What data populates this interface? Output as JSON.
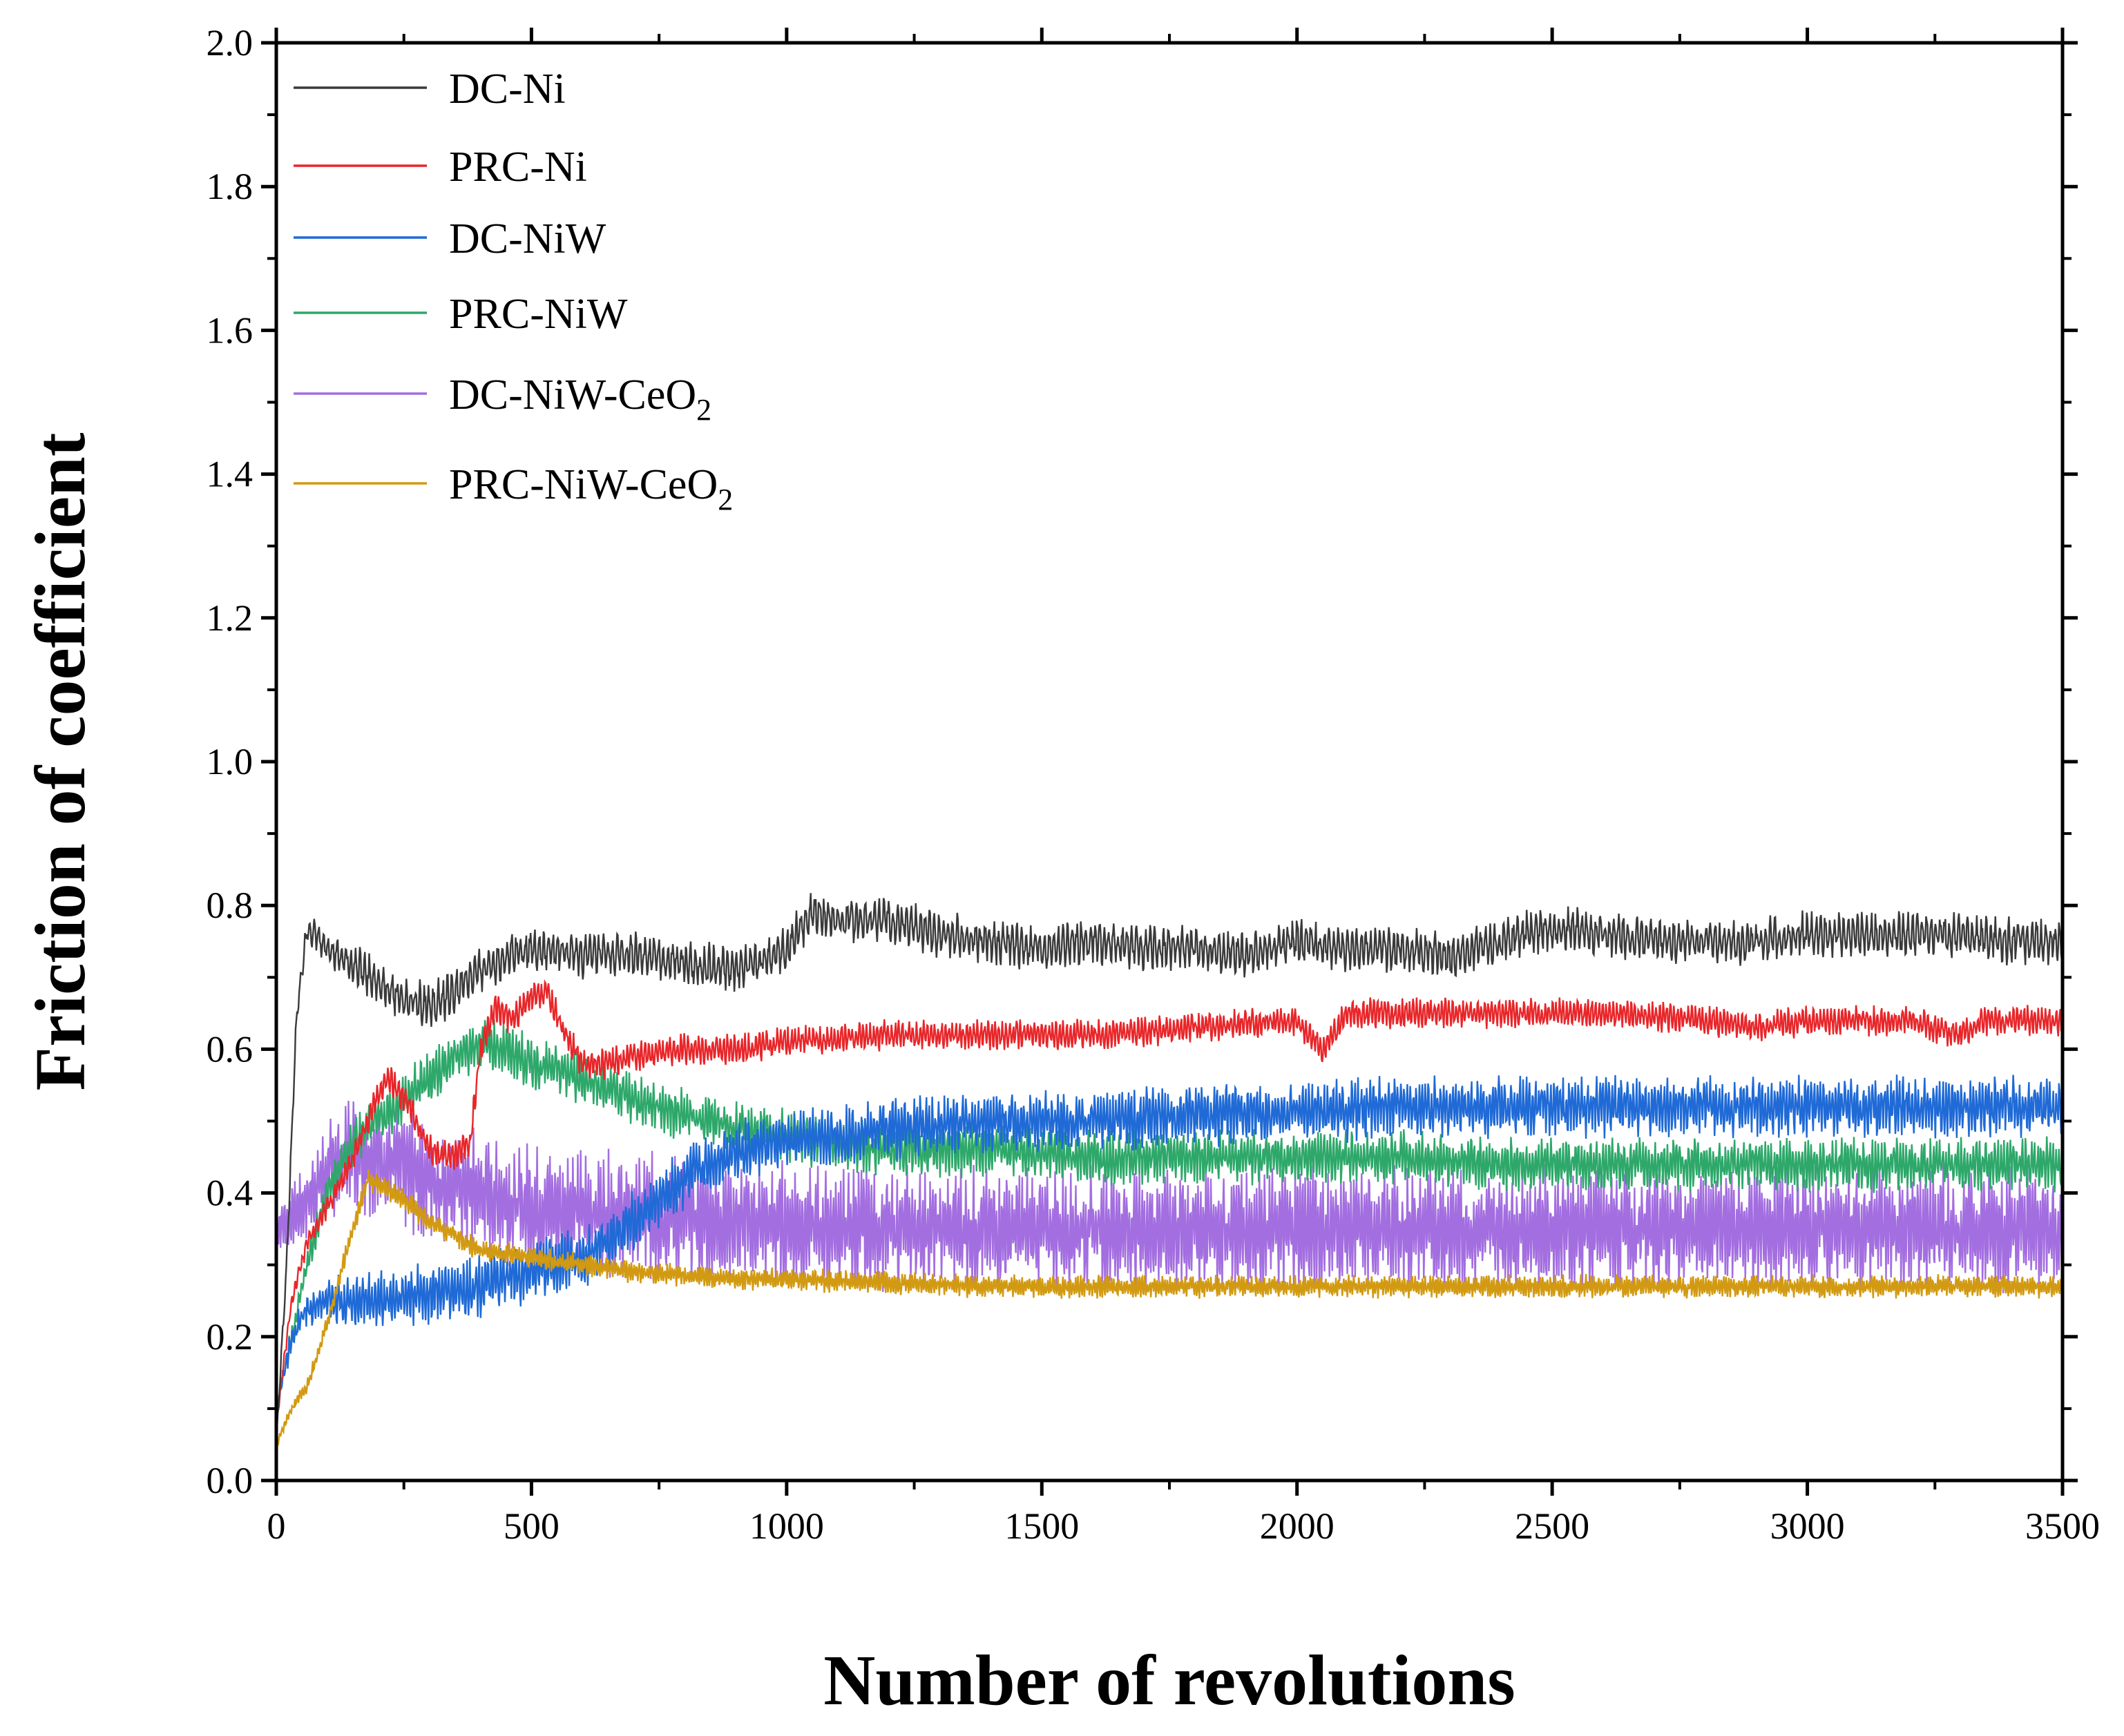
{
  "chart_data": {
    "type": "line",
    "title": "",
    "xlabel": "Number of revolutions",
    "ylabel": "Friction of coefficient",
    "xlim": [
      0,
      3500
    ],
    "ylim": [
      0.0,
      2.0
    ],
    "x_ticks": [
      "0",
      "500",
      "1000",
      "1500",
      "2000",
      "2500",
      "3000",
      "3500"
    ],
    "y_ticks": [
      "0.0",
      "0.2",
      "0.4",
      "0.6",
      "0.8",
      "1.0",
      "1.2",
      "1.4",
      "1.6",
      "1.8",
      "2.0"
    ],
    "grid": false,
    "legend_position": "top-left",
    "series": [
      {
        "name": "DC-Ni",
        "subscript": "",
        "color": "#3a3a3a",
        "noise": 0.03,
        "period": 9,
        "points": [
          [
            0,
            0.05
          ],
          [
            20,
            0.3
          ],
          [
            40,
            0.65
          ],
          [
            60,
            0.77
          ],
          [
            100,
            0.74
          ],
          [
            150,
            0.72
          ],
          [
            200,
            0.69
          ],
          [
            250,
            0.67
          ],
          [
            300,
            0.66
          ],
          [
            350,
            0.68
          ],
          [
            400,
            0.71
          ],
          [
            450,
            0.73
          ],
          [
            500,
            0.74
          ],
          [
            600,
            0.73
          ],
          [
            700,
            0.73
          ],
          [
            800,
            0.72
          ],
          [
            900,
            0.71
          ],
          [
            1000,
            0.74
          ],
          [
            1050,
            0.79
          ],
          [
            1100,
            0.78
          ],
          [
            1200,
            0.78
          ],
          [
            1300,
            0.76
          ],
          [
            1400,
            0.75
          ],
          [
            1500,
            0.74
          ],
          [
            1600,
            0.75
          ],
          [
            1700,
            0.74
          ],
          [
            1800,
            0.74
          ],
          [
            1900,
            0.73
          ],
          [
            2000,
            0.75
          ],
          [
            2100,
            0.74
          ],
          [
            2200,
            0.74
          ],
          [
            2300,
            0.73
          ],
          [
            2400,
            0.75
          ],
          [
            2500,
            0.77
          ],
          [
            2600,
            0.76
          ],
          [
            2700,
            0.75
          ],
          [
            2800,
            0.75
          ],
          [
            2900,
            0.75
          ],
          [
            3000,
            0.76
          ],
          [
            3100,
            0.76
          ],
          [
            3200,
            0.76
          ],
          [
            3300,
            0.76
          ],
          [
            3400,
            0.75
          ],
          [
            3500,
            0.75
          ]
        ]
      },
      {
        "name": "PRC-Ni",
        "subscript": "",
        "color": "#e8262a",
        "noise": 0.02,
        "period": 7,
        "points": [
          [
            0,
            0.08
          ],
          [
            30,
            0.25
          ],
          [
            60,
            0.33
          ],
          [
            100,
            0.38
          ],
          [
            150,
            0.45
          ],
          [
            200,
            0.54
          ],
          [
            220,
            0.56
          ],
          [
            260,
            0.52
          ],
          [
            300,
            0.46
          ],
          [
            350,
            0.45
          ],
          [
            380,
            0.47
          ],
          [
            400,
            0.6
          ],
          [
            430,
            0.66
          ],
          [
            460,
            0.64
          ],
          [
            500,
            0.67
          ],
          [
            530,
            0.68
          ],
          [
            560,
            0.63
          ],
          [
            600,
            0.58
          ],
          [
            650,
            0.58
          ],
          [
            700,
            0.59
          ],
          [
            800,
            0.6
          ],
          [
            900,
            0.6
          ],
          [
            1000,
            0.61
          ],
          [
            1200,
            0.62
          ],
          [
            1400,
            0.62
          ],
          [
            1600,
            0.62
          ],
          [
            1800,
            0.63
          ],
          [
            2000,
            0.64
          ],
          [
            2050,
            0.6
          ],
          [
            2100,
            0.65
          ],
          [
            2200,
            0.65
          ],
          [
            2400,
            0.65
          ],
          [
            2600,
            0.65
          ],
          [
            2800,
            0.64
          ],
          [
            2900,
            0.63
          ],
          [
            3000,
            0.64
          ],
          [
            3200,
            0.64
          ],
          [
            3300,
            0.62
          ],
          [
            3350,
            0.64
          ],
          [
            3500,
            0.64
          ]
        ]
      },
      {
        "name": "DC-NiW",
        "subscript": "",
        "color": "#1f6ad6",
        "noise": 0.04,
        "period": 6,
        "points": [
          [
            0,
            0.1
          ],
          [
            30,
            0.2
          ],
          [
            60,
            0.24
          ],
          [
            100,
            0.25
          ],
          [
            200,
            0.25
          ],
          [
            300,
            0.26
          ],
          [
            400,
            0.27
          ],
          [
            500,
            0.29
          ],
          [
            600,
            0.31
          ],
          [
            700,
            0.36
          ],
          [
            800,
            0.42
          ],
          [
            900,
            0.46
          ],
          [
            1000,
            0.47
          ],
          [
            1100,
            0.48
          ],
          [
            1200,
            0.49
          ],
          [
            1400,
            0.5
          ],
          [
            1600,
            0.5
          ],
          [
            1800,
            0.51
          ],
          [
            2000,
            0.51
          ],
          [
            2200,
            0.52
          ],
          [
            2400,
            0.52
          ],
          [
            2600,
            0.52
          ],
          [
            2800,
            0.52
          ],
          [
            3000,
            0.52
          ],
          [
            3200,
            0.52
          ],
          [
            3400,
            0.52
          ],
          [
            3500,
            0.52
          ]
        ]
      },
      {
        "name": "PRC-NiW",
        "subscript": "",
        "color": "#2ea86a",
        "noise": 0.035,
        "period": 6,
        "points": [
          [
            0,
            0.1
          ],
          [
            30,
            0.2
          ],
          [
            60,
            0.3
          ],
          [
            100,
            0.4
          ],
          [
            150,
            0.47
          ],
          [
            200,
            0.5
          ],
          [
            250,
            0.53
          ],
          [
            300,
            0.56
          ],
          [
            350,
            0.59
          ],
          [
            400,
            0.61
          ],
          [
            450,
            0.6
          ],
          [
            500,
            0.58
          ],
          [
            600,
            0.56
          ],
          [
            700,
            0.53
          ],
          [
            800,
            0.51
          ],
          [
            900,
            0.49
          ],
          [
            1000,
            0.48
          ],
          [
            1100,
            0.47
          ],
          [
            1200,
            0.46
          ],
          [
            1400,
            0.46
          ],
          [
            1600,
            0.45
          ],
          [
            1800,
            0.45
          ],
          [
            2000,
            0.45
          ],
          [
            2200,
            0.45
          ],
          [
            2400,
            0.44
          ],
          [
            2600,
            0.44
          ],
          [
            2800,
            0.44
          ],
          [
            3000,
            0.44
          ],
          [
            3200,
            0.44
          ],
          [
            3400,
            0.44
          ],
          [
            3500,
            0.44
          ]
        ]
      },
      {
        "name": "DC-NiW-CeO",
        "subscript": "2",
        "color": "#a36ee0",
        "noise": 0.08,
        "period": 5,
        "points": [
          [
            0,
            0.35
          ],
          [
            50,
            0.38
          ],
          [
            100,
            0.43
          ],
          [
            150,
            0.46
          ],
          [
            200,
            0.45
          ],
          [
            300,
            0.42
          ],
          [
            400,
            0.4
          ],
          [
            500,
            0.38
          ],
          [
            700,
            0.37
          ],
          [
            900,
            0.36
          ],
          [
            1100,
            0.35
          ],
          [
            1300,
            0.35
          ],
          [
            1500,
            0.35
          ],
          [
            1700,
            0.35
          ],
          [
            1900,
            0.35
          ],
          [
            2100,
            0.35
          ],
          [
            2300,
            0.35
          ],
          [
            2500,
            0.35
          ],
          [
            2700,
            0.35
          ],
          [
            2900,
            0.35
          ],
          [
            3100,
            0.35
          ],
          [
            3300,
            0.35
          ],
          [
            3500,
            0.35
          ]
        ]
      },
      {
        "name": "PRC-NiW-CeO",
        "subscript": "2",
        "color": "#d29a12",
        "noise": 0.015,
        "period": 5,
        "points": [
          [
            0,
            0.05
          ],
          [
            30,
            0.1
          ],
          [
            60,
            0.13
          ],
          [
            100,
            0.22
          ],
          [
            150,
            0.35
          ],
          [
            180,
            0.42
          ],
          [
            200,
            0.41
          ],
          [
            250,
            0.39
          ],
          [
            300,
            0.36
          ],
          [
            350,
            0.34
          ],
          [
            400,
            0.32
          ],
          [
            500,
            0.31
          ],
          [
            600,
            0.3
          ],
          [
            700,
            0.29
          ],
          [
            800,
            0.285
          ],
          [
            900,
            0.28
          ],
          [
            1000,
            0.28
          ],
          [
            1200,
            0.275
          ],
          [
            1400,
            0.27
          ],
          [
            1600,
            0.27
          ],
          [
            1800,
            0.27
          ],
          [
            2000,
            0.27
          ],
          [
            2200,
            0.27
          ],
          [
            2400,
            0.27
          ],
          [
            2600,
            0.27
          ],
          [
            2800,
            0.27
          ],
          [
            3000,
            0.27
          ],
          [
            3200,
            0.27
          ],
          [
            3400,
            0.27
          ],
          [
            3500,
            0.27
          ]
        ]
      }
    ]
  }
}
